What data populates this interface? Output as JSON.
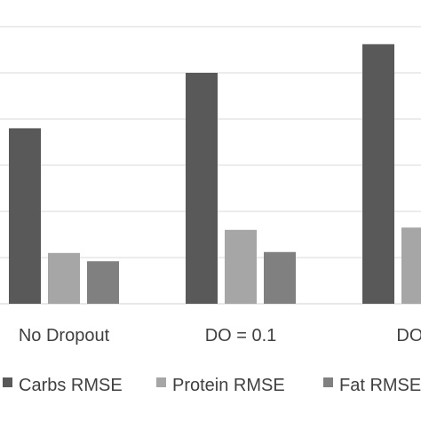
{
  "chart_data": {
    "type": "bar",
    "categories": [
      "No Dropout",
      "DO = 0.1",
      "DO ="
    ],
    "series": [
      {
        "name": "Carbs RMSE",
        "values": [
          3.8,
          5.0,
          5.62
        ],
        "color": "#595959"
      },
      {
        "name": "Protein RMSE",
        "values": [
          1.1,
          1.6,
          1.65
        ],
        "color": "#a6a6a6"
      },
      {
        "name": "Fat RMSE",
        "values": [
          0.92,
          1.12,
          null
        ],
        "color": "#808080"
      }
    ],
    "ylim": [
      0,
      6
    ],
    "grid": true,
    "legend_position": "bottom"
  }
}
